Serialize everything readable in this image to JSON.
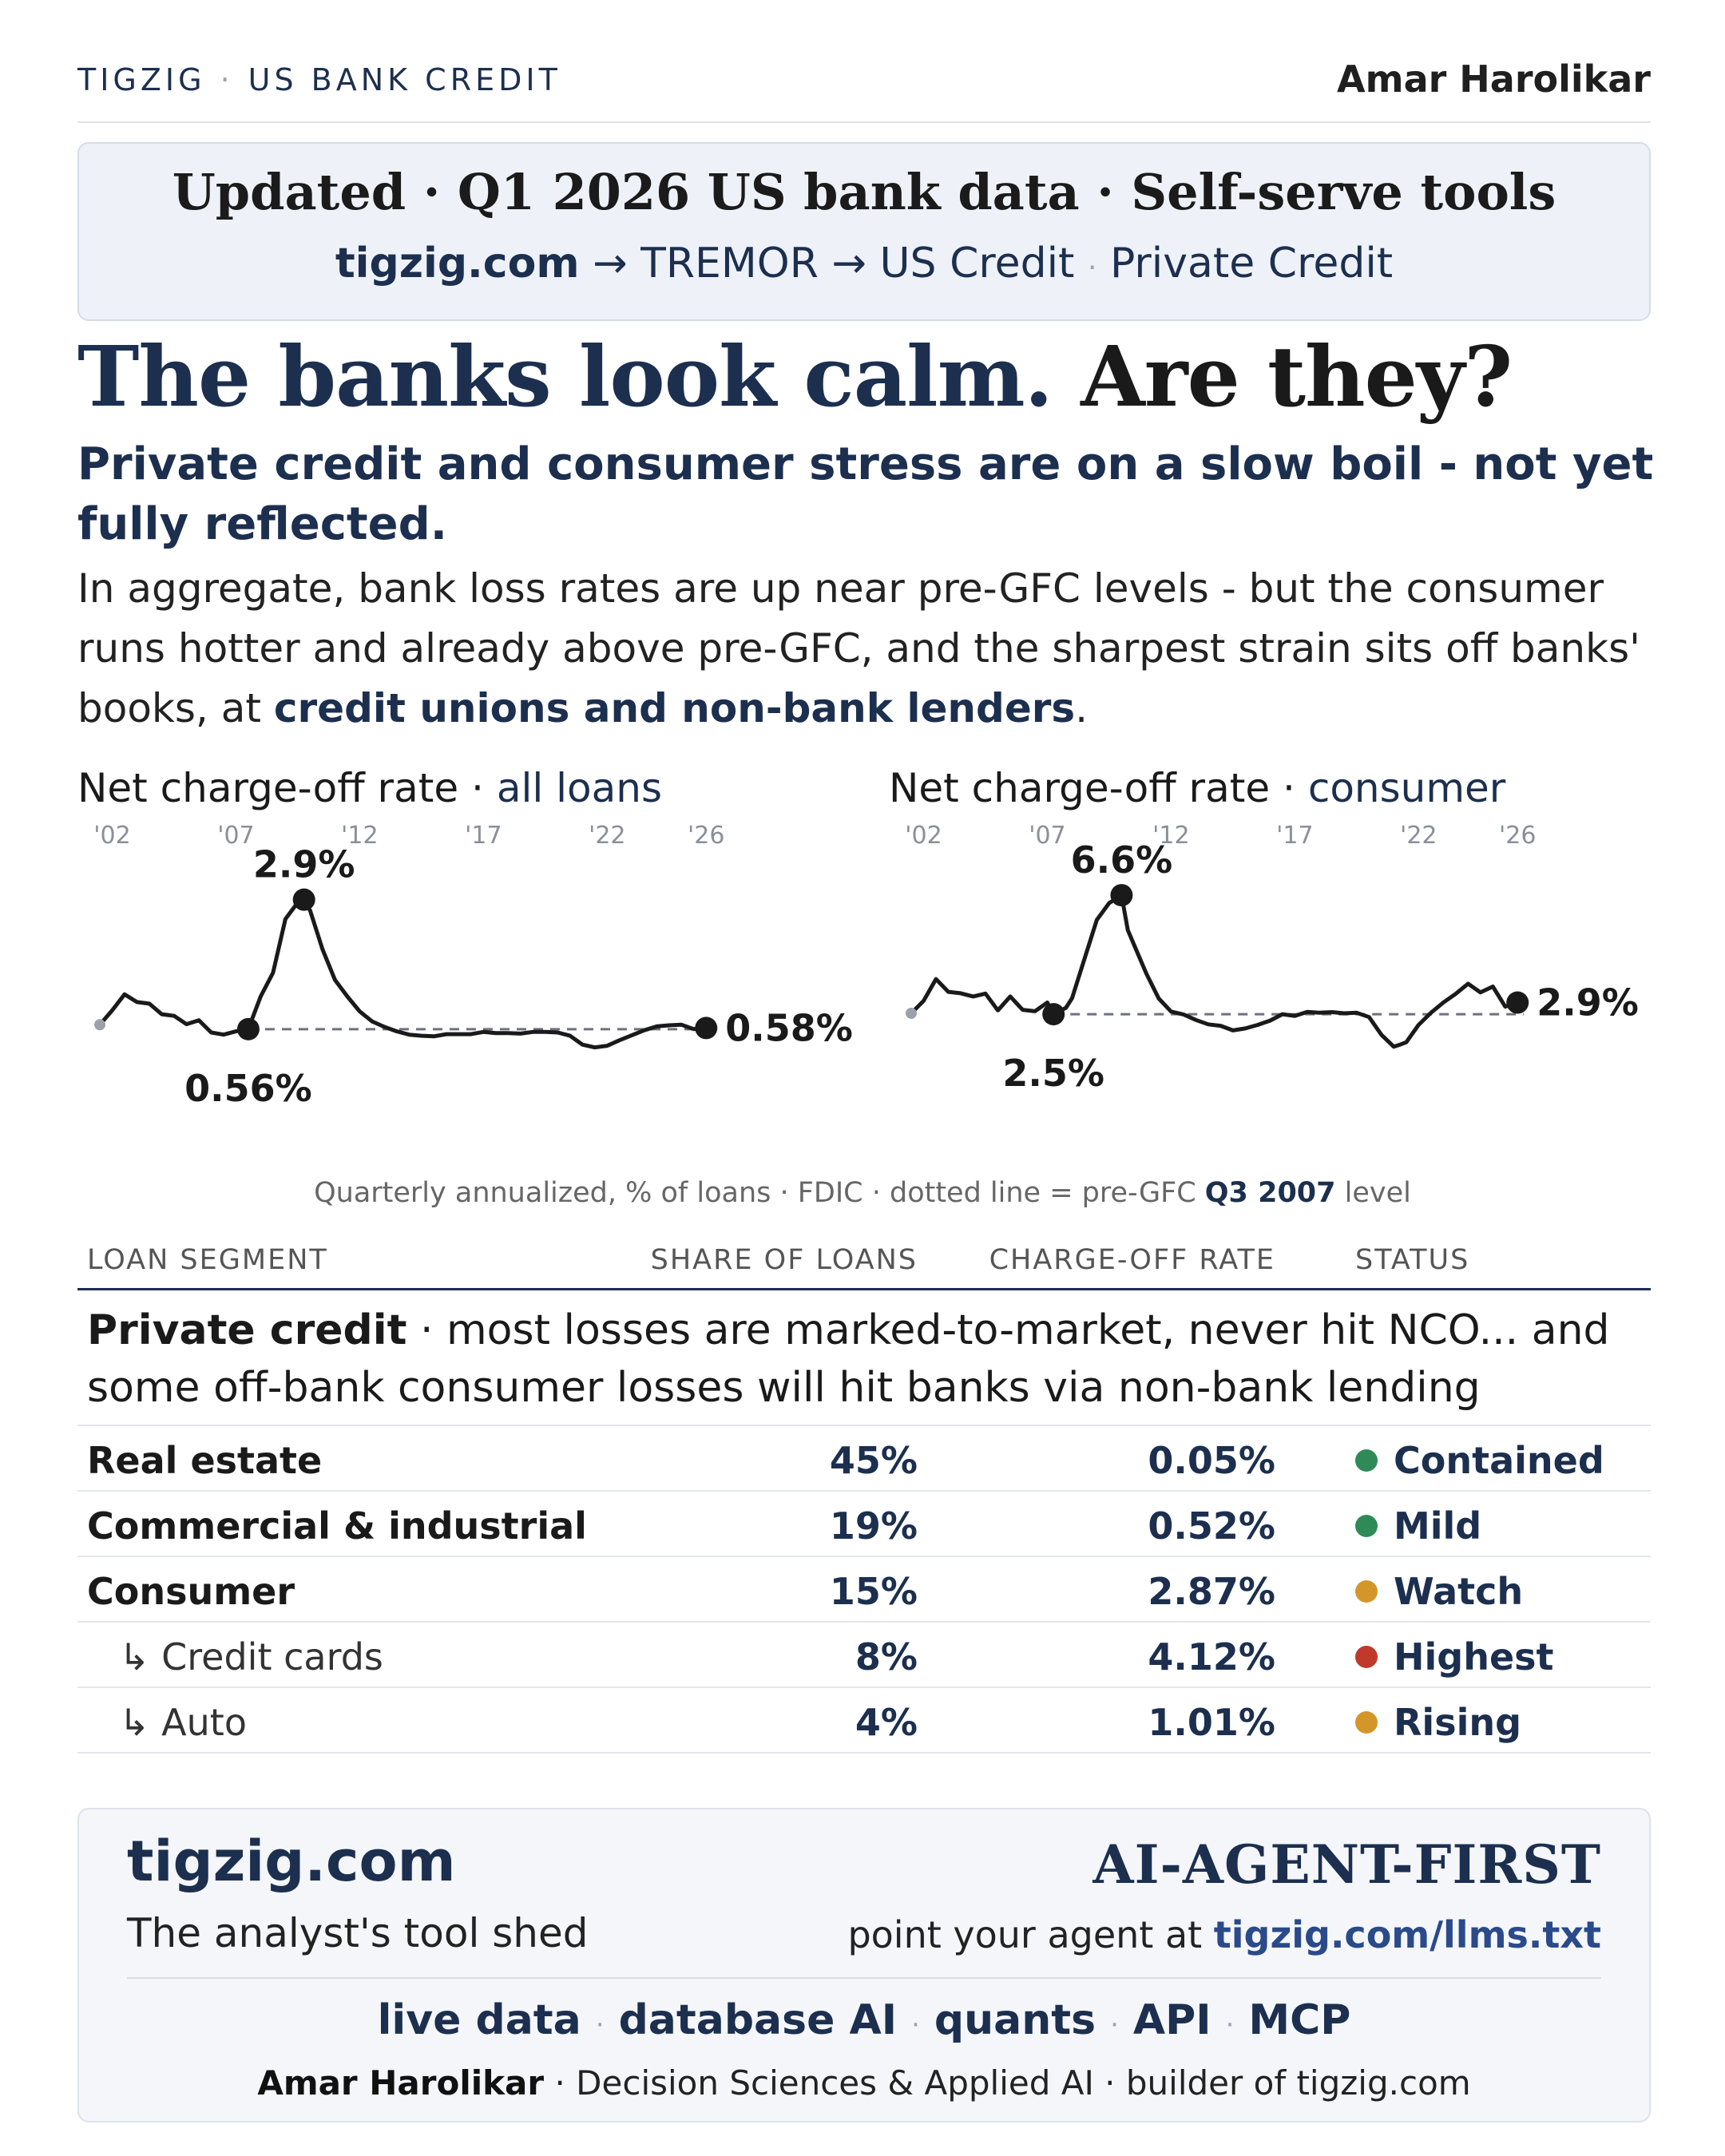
{
  "header": {
    "brand": "TIGZIG",
    "section": "US BANK CREDIT",
    "author": "Amar Harolikar"
  },
  "update": {
    "title": "Updated · Q1 2026 US bank data · Self-serve tools",
    "site": "tigzig.com",
    "path": "→ TREMOR → US Credit",
    "extra": "Private Credit"
  },
  "headline": {
    "part1": "The banks look calm.",
    "part2": "Are they?"
  },
  "subhead": "Private credit and consumer stress are on a slow boil - not yet fully reflected.",
  "body": {
    "text": "In aggregate, bank loss rates are up near pre-GFC levels - but the consumer runs hotter and already above pre-GFC, and the sharpest strain sits off banks' books, at",
    "emphasis": "credit unions and non-bank lenders",
    "end": "."
  },
  "chart_data": [
    {
      "type": "line",
      "title": "Net charge-off rate · all loans",
      "title_prefix": "Net charge-off rate ·",
      "title_highlight": "all loans",
      "x_ticks": [
        "'02",
        "'07",
        "'12",
        "'17",
        "'22",
        "'26"
      ],
      "x_tick_years": [
        2002,
        2007,
        2012,
        2017,
        2022,
        2026
      ],
      "xlim": [
        2001.5,
        2026.25
      ],
      "ylim": [
        -0.9,
        3.4
      ],
      "reference": {
        "label": "pre-GFC Q3 2007 level",
        "value": 0.56
      },
      "annotations": [
        {
          "text": "2.9%",
          "x": 2009.75,
          "y": 2.9,
          "role": "peak"
        },
        {
          "text": "0.56%",
          "x": 2007.5,
          "y": 0.56,
          "role": "pre-gfc"
        },
        {
          "text": "0.58%",
          "x": 2026.0,
          "y": 0.58,
          "role": "latest"
        }
      ],
      "series": [
        {
          "x": [
            2001.5,
            2002,
            2002.5,
            2003,
            2003.5,
            2004,
            2004.5,
            2005,
            2005.5,
            2006,
            2006.5,
            2007,
            2007.5,
            2008,
            2008.5,
            2009,
            2009.5,
            2009.75,
            2010,
            2010.5,
            2011,
            2011.5,
            2012,
            2012.5,
            2013,
            2013.5,
            2014,
            2014.5,
            2015,
            2015.5,
            2016,
            2016.5,
            2017,
            2017.5,
            2018,
            2018.5,
            2019,
            2019.5,
            2020,
            2020.5,
            2021,
            2021.5,
            2022,
            2022.5,
            2023,
            2023.5,
            2024,
            2024.5,
            2025,
            2025.5,
            2026
          ],
          "y": [
            0.64,
            0.9,
            1.19,
            1.05,
            1.02,
            0.83,
            0.8,
            0.65,
            0.72,
            0.5,
            0.46,
            0.52,
            0.56,
            1.15,
            1.58,
            2.55,
            2.85,
            2.9,
            2.7,
            2.0,
            1.45,
            1.15,
            0.88,
            0.7,
            0.6,
            0.52,
            0.46,
            0.44,
            0.43,
            0.47,
            0.47,
            0.47,
            0.51,
            0.49,
            0.49,
            0.48,
            0.51,
            0.51,
            0.5,
            0.44,
            0.28,
            0.23,
            0.26,
            0.36,
            0.45,
            0.54,
            0.61,
            0.63,
            0.64,
            0.56,
            0.58
          ]
        }
      ]
    },
    {
      "type": "line",
      "title": "Net charge-off rate · consumer",
      "title_prefix": "Net charge-off rate ·",
      "title_highlight": "consumer",
      "x_ticks": [
        "'02",
        "'07",
        "'12",
        "'17",
        "'22",
        "'26"
      ],
      "x_tick_years": [
        2002,
        2007,
        2012,
        2017,
        2022,
        2026
      ],
      "xlim": [
        2001.5,
        2026.25
      ],
      "ylim": [
        -0.8,
        7.4
      ],
      "reference": {
        "label": "pre-GFC Q3 2007 level",
        "value": 2.5
      },
      "annotations": [
        {
          "text": "6.6%",
          "x": 2010.0,
          "y": 6.6,
          "role": "peak"
        },
        {
          "text": "2.5%",
          "x": 2007.25,
          "y": 2.5,
          "role": "pre-gfc"
        },
        {
          "text": "2.9%",
          "x": 2026.0,
          "y": 2.9,
          "role": "latest"
        }
      ],
      "series": [
        {
          "x": [
            2001.5,
            2002,
            2002.5,
            2003,
            2003.5,
            2004,
            2004.5,
            2005,
            2005.5,
            2006,
            2006.5,
            2007,
            2007.25,
            2007.75,
            2008,
            2008.5,
            2009,
            2009.5,
            2010,
            2010.25,
            2010.5,
            2011,
            2011.5,
            2012,
            2012.5,
            2013,
            2013.5,
            2014,
            2014.5,
            2015,
            2015.5,
            2016,
            2016.5,
            2017,
            2017.5,
            2018,
            2018.5,
            2019,
            2019.5,
            2020,
            2020.5,
            2021,
            2021.25,
            2021.5,
            2022,
            2022.5,
            2023,
            2023.5,
            2024,
            2024.5,
            2025,
            2025.5,
            2026
          ],
          "y": [
            2.53,
            2.96,
            3.71,
            3.27,
            3.22,
            3.11,
            3.21,
            2.63,
            3.11,
            2.65,
            2.6,
            2.9,
            2.5,
            2.72,
            3.05,
            4.4,
            5.75,
            6.33,
            6.6,
            5.4,
            4.9,
            3.9,
            3.04,
            2.59,
            2.49,
            2.3,
            2.15,
            2.1,
            1.94,
            2.01,
            2.13,
            2.28,
            2.5,
            2.44,
            2.58,
            2.55,
            2.57,
            2.53,
            2.55,
            2.4,
            1.79,
            1.38,
            1.45,
            1.53,
            2.13,
            2.55,
            2.9,
            3.2,
            3.55,
            3.25,
            3.45,
            2.76,
            2.9
          ]
        }
      ]
    }
  ],
  "caption": {
    "prefix": "Quarterly annualized, % of loans · FDIC · dotted line = pre-GFC",
    "highlight": "Q3 2007",
    "suffix": "level"
  },
  "table": {
    "headers": {
      "segment": "LOAN SEGMENT",
      "share": "SHARE OF LOANS",
      "rate": "CHARGE-OFF RATE",
      "status": "STATUS"
    },
    "note_bold": "Private credit",
    "note_text": "· most losses are marked-to-market, never hit NCO... and some off-bank consumer losses will hit banks via non-bank lending",
    "rows": [
      {
        "segment": "Real estate",
        "share": "45%",
        "rate": "0.05%",
        "status": "Contained",
        "status_color": "#2e8b57",
        "sub": false
      },
      {
        "segment": "Commercial & industrial",
        "share": "19%",
        "rate": "0.52%",
        "status": "Mild",
        "status_color": "#2e8b57",
        "sub": false
      },
      {
        "segment": "Consumer",
        "share": "15%",
        "rate": "2.87%",
        "status": "Watch",
        "status_color": "#d4962a",
        "sub": false
      },
      {
        "segment": "↳ Credit cards",
        "share": "8%",
        "rate": "4.12%",
        "status": "Highest",
        "status_color": "#c0392b",
        "sub": true
      },
      {
        "segment": "↳ Auto",
        "share": "4%",
        "rate": "1.01%",
        "status": "Rising",
        "status_color": "#d4962a",
        "sub": true
      }
    ]
  },
  "footer": {
    "site": "tigzig.com",
    "tagline": "The analyst's tool shed",
    "agent_title": "AI-AGENT-FIRST",
    "point_prefix": "point your agent at",
    "point_link": "tigzig.com/llms.txt",
    "links": [
      "live data",
      "database AI",
      "quants",
      "API",
      "MCP"
    ],
    "byline_name": "Amar Harolikar",
    "byline_rest": "· Decision Sciences & Applied AI · builder of tigzig.com"
  },
  "colors": {
    "navy": "#1c2f4f",
    "line": "#1a1a1a",
    "reference": "#6b7280",
    "green": "#2e8b57",
    "amber": "#d4962a",
    "red": "#c0392b"
  }
}
